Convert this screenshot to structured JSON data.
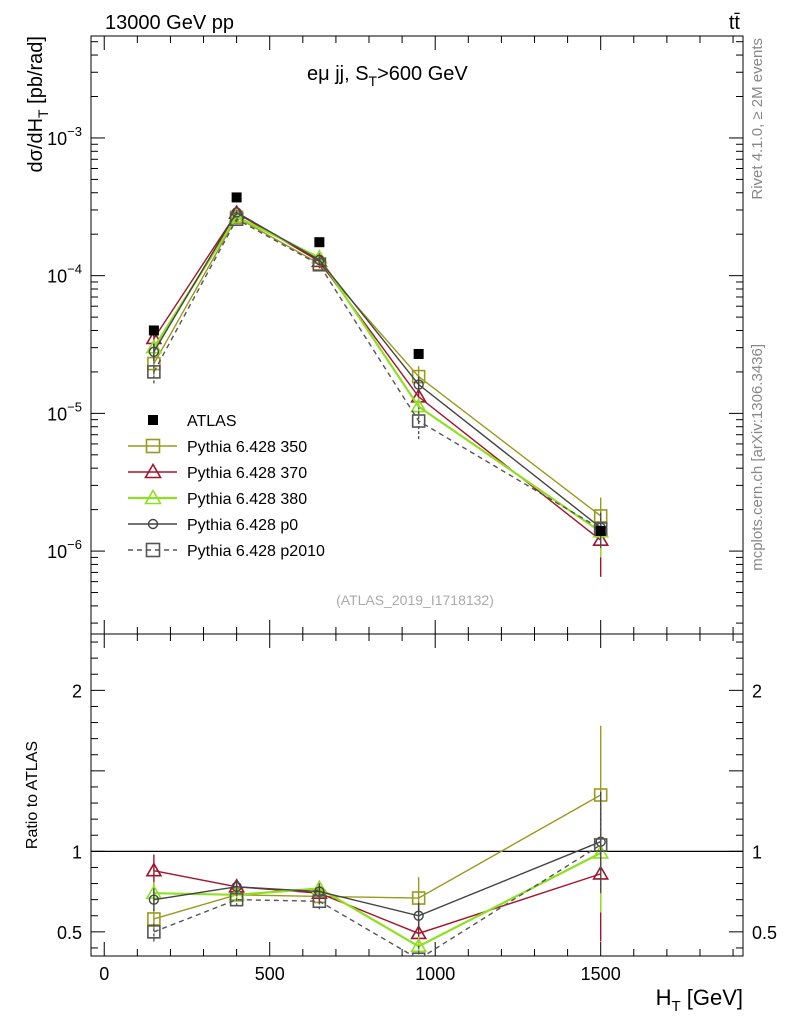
{
  "header": {
    "left": "13000 GeV pp",
    "right": "tt̄"
  },
  "side_labels": {
    "rivet": "Rivet 4.1.0, ≥ 2M events",
    "source": "mcplots.cern.ch [arXiv:1306.3436]"
  },
  "chart_data": [
    {
      "type": "line",
      "panel": "main",
      "title": "eμ jj, S",
      "title_sub": "T",
      "title_cut": ">600 GeV",
      "ylabel": "dσ/dH",
      "ylabel_sub": "T",
      "ylabel_unit": " [pb/rad]",
      "yscale": "log",
      "ylim": [
        2.5e-07,
        0.0055
      ],
      "xlim": [
        -40,
        1930
      ],
      "y_ticks": [
        {
          "value": 0.001,
          "base": "10",
          "exp": "−3"
        },
        {
          "value": 0.0001,
          "base": "10",
          "exp": "−4"
        },
        {
          "value": 1e-05,
          "base": "10",
          "exp": "−5"
        },
        {
          "value": 1e-06,
          "base": "10",
          "exp": "−6"
        }
      ],
      "analysis_id": "(ATLAS_2019_I1718132)",
      "x": [
        150,
        400,
        650,
        950,
        1500
      ],
      "reference": {
        "name": "ATLAS",
        "values": [
          4e-05,
          0.00037,
          0.000175,
          2.7e-05,
          1.4e-06
        ],
        "color": "#000000",
        "marker": "filled-square"
      },
      "series": [
        {
          "name": "Pythia 6.428 350",
          "color": "#9a9a1e",
          "marker": "open-square",
          "dash": "",
          "values": [
            2.3e-05,
            0.000265,
            0.000122,
            1.85e-05,
            1.8e-06
          ],
          "err_lo": [
            1.9e-05,
            0.00025,
            0.000115,
            1.55e-05,
            1.3e-06
          ],
          "err_hi": [
            2.7e-05,
            0.00028,
            0.00013,
            2.2e-05,
            2.45e-06
          ]
        },
        {
          "name": "Pythia 6.428 370",
          "color": "#a0152e",
          "marker": "open-triangle",
          "dash": "",
          "values": [
            3.5e-05,
            0.000285,
            0.000127,
            1.32e-05,
            1.2e-06
          ],
          "err_lo": [
            3e-05,
            0.00027,
            0.00012,
            1.1e-05,
            6.5e-07
          ],
          "err_hi": [
            4e-05,
            0.0003,
            0.000135,
            1.55e-05,
            1.75e-06
          ]
        },
        {
          "name": "Pythia 6.428 380",
          "color": "#8ee021",
          "marker": "open-triangle",
          "dash": "",
          "values": [
            3e-05,
            0.000268,
            0.000135,
            1.12e-05,
            1.38e-06
          ],
          "err_lo": [
            2.6e-05,
            0.000255,
            0.000128,
            9.5e-06,
            9e-07
          ],
          "err_hi": [
            3.4e-05,
            0.00028,
            0.000142,
            1.3e-05,
            1.9e-06
          ]
        },
        {
          "name": "Pythia 6.428 p0",
          "color": "#444444",
          "marker": "open-circle",
          "dash": "",
          "values": [
            2.8e-05,
            0.000288,
            0.00013,
            1.62e-05,
            1.48e-06
          ],
          "err_lo": [
            2.4e-05,
            0.000275,
            0.000122,
            1.4e-05,
            1.1e-06
          ],
          "err_hi": [
            3.2e-05,
            0.0003,
            0.000138,
            1.85e-05,
            1.9e-06
          ]
        },
        {
          "name": "Pythia 6.428 p2010",
          "color": "#555555",
          "marker": "open-square",
          "dash": "5,4",
          "values": [
            2e-05,
            0.000257,
            0.00012,
            8.8e-06,
            1.45e-06
          ],
          "err_lo": [
            1.65e-05,
            0.000245,
            0.000113,
            6.5e-06,
            1.05e-06
          ],
          "err_hi": [
            2.35e-05,
            0.00027,
            0.000127,
            1.1e-05,
            1.85e-06
          ]
        }
      ]
    },
    {
      "type": "line",
      "panel": "ratio",
      "ylabel": "Ratio to ATLAS",
      "xlabel": "H",
      "xlabel_sub": "T",
      "xlabel_unit": " [GeV]",
      "ylim": [
        0.35,
        2.35
      ],
      "xlim": [
        -40,
        1930
      ],
      "x_ticks": [
        0,
        500,
        1000,
        1500
      ],
      "y_ticks": [
        0.5,
        1,
        2
      ],
      "x": [
        150,
        400,
        650,
        950,
        1500
      ],
      "reference_line": 1,
      "series": [
        {
          "name": "Pythia 6.428 350",
          "values": [
            0.58,
            0.73,
            0.72,
            0.71,
            1.35
          ],
          "err_lo": [
            0.52,
            0.69,
            0.67,
            0.6,
            0.85
          ],
          "err_hi": [
            0.64,
            0.77,
            0.77,
            0.84,
            1.78
          ]
        },
        {
          "name": "Pythia 6.428 370",
          "values": [
            0.88,
            0.78,
            0.74,
            0.49,
            0.86
          ],
          "err_lo": [
            0.78,
            0.74,
            0.69,
            0.41,
            0.44
          ],
          "err_hi": [
            0.98,
            0.82,
            0.79,
            0.57,
            1.28
          ]
        },
        {
          "name": "Pythia 6.428 380",
          "values": [
            0.74,
            0.73,
            0.77,
            0.41,
            0.99
          ],
          "err_lo": [
            0.67,
            0.69,
            0.72,
            0.35,
            0.62
          ],
          "err_hi": [
            0.81,
            0.77,
            0.82,
            0.47,
            1.36
          ]
        },
        {
          "name": "Pythia 6.428 p0",
          "values": [
            0.7,
            0.78,
            0.75,
            0.6,
            1.06
          ],
          "err_lo": [
            0.63,
            0.74,
            0.7,
            0.52,
            0.75
          ],
          "err_hi": [
            0.77,
            0.82,
            0.8,
            0.68,
            1.37
          ]
        },
        {
          "name": "Pythia 6.428 p2010",
          "values": [
            0.5,
            0.7,
            0.69,
            0.33,
            1.04
          ],
          "err_lo": [
            0.44,
            0.66,
            0.64,
            0.24,
            0.74
          ],
          "err_hi": [
            0.56,
            0.74,
            0.74,
            0.42,
            1.34
          ]
        }
      ]
    }
  ]
}
